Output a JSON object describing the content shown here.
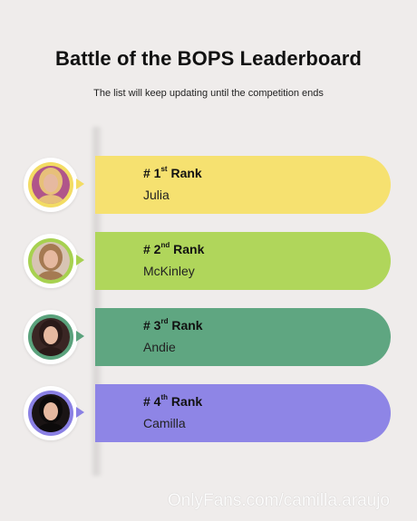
{
  "header": {
    "title": "Battle of the BOPS Leaderboard",
    "subtitle": "The list will keep updating until the competition ends"
  },
  "leaderboard": [
    {
      "rank_prefix": "# 1",
      "rank_suffix": "st",
      "rank_word": "Rank",
      "name": "Julia",
      "color": "#f6e170",
      "ring_color": "#f3dc63",
      "photo_tone": "#b0558a",
      "hair_tone": "#e7c07a"
    },
    {
      "rank_prefix": "# 2",
      "rank_suffix": "nd",
      "rank_word": "Rank",
      "name": "McKinley",
      "color": "#b0d65b",
      "ring_color": "#a7d150",
      "photo_tone": "#d8c4b4",
      "hair_tone": "#a57a52"
    },
    {
      "rank_prefix": "# 3",
      "rank_suffix": "rd",
      "rank_word": "Rank",
      "name": "Andie",
      "color": "#5fa681",
      "ring_color": "#5aa27c",
      "photo_tone": "#3a2624",
      "hair_tone": "#2a1a18"
    },
    {
      "rank_prefix": "# 4",
      "rank_suffix": "th",
      "rank_word": "Rank",
      "name": "Camilla",
      "color": "#8e85e6",
      "ring_color": "#8a80e4",
      "photo_tone": "#1a1414",
      "hair_tone": "#0d0b0b"
    }
  ],
  "watermark": "OnlyFans.com/camilla.araujo"
}
